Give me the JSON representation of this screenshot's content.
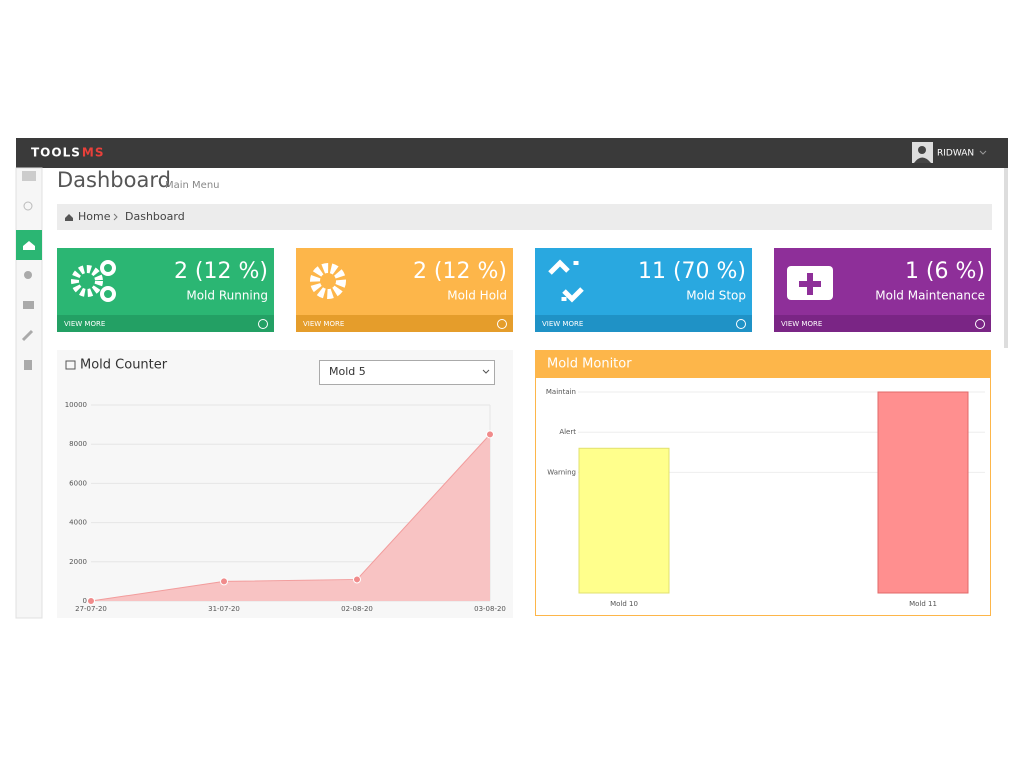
{
  "navbar": {
    "brand": "TOOLS",
    "brand_accent": "MS",
    "user": "RIDWAN"
  },
  "header": {
    "title": "Dashboard",
    "subtitle": "Main Menu"
  },
  "breadcrumb": [
    "Home",
    "Dashboard"
  ],
  "stats": [
    {
      "value": "2 (12 %)",
      "label": "Mold Running",
      "link": "VIEW MORE",
      "color": "#2bb673",
      "footer_color": "#23a064"
    },
    {
      "value": "2 (12 %)",
      "label": "Mold Hold",
      "link": "VIEW MORE",
      "color": "#fdb64a",
      "footer_color": "#e59d2b"
    },
    {
      "value": "11 (70 %)",
      "label": "Mold Stop",
      "link": "VIEW MORE",
      "color": "#29a8e0",
      "footer_color": "#1f92c6"
    },
    {
      "value": "1 (6 %)",
      "label": "Mold Maintenance",
      "link": "VIEW MORE",
      "color": "#8e2f99",
      "footer_color": "#7a2585"
    }
  ],
  "selector": "Mold 5",
  "chart_data": [
    {
      "type": "area",
      "title": "Mold Counter",
      "categories": [
        "27-07-20",
        "31-07-20",
        "02-08-20",
        "03-08-20"
      ],
      "values": [
        0,
        1000,
        1100,
        8500
      ],
      "color": "#f29c9c",
      "fill": "#f8c3c3",
      "ylim": [
        0,
        10000
      ],
      "yticks": [
        0,
        2000,
        4000,
        6000,
        8000,
        10000
      ],
      "grid": true
    },
    {
      "type": "bar",
      "title": "Mold Monitor",
      "categories": [
        "Mold 10",
        "Mold 11"
      ],
      "values": [
        72,
        100
      ],
      "colors": [
        "#ffff8c",
        "#ff8f8f"
      ],
      "ylim": [
        0,
        100
      ],
      "yticks": [
        {
          "value": 60,
          "label": "Warning"
        },
        {
          "value": 80,
          "label": "Alert"
        },
        {
          "value": 100,
          "label": "Maintain"
        }
      ],
      "grid": true
    }
  ]
}
